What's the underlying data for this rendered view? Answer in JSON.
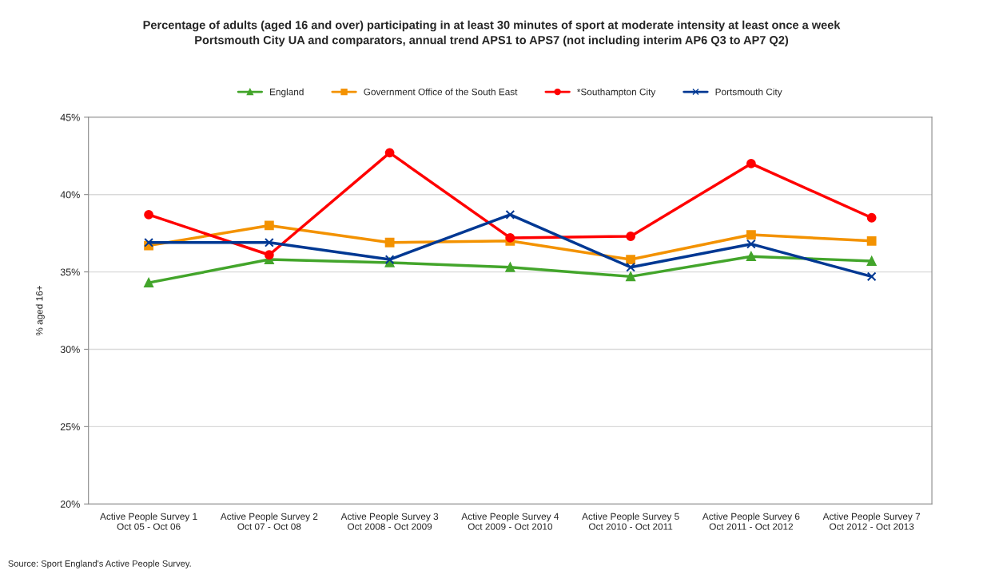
{
  "chart_data": {
    "type": "line",
    "title": "Percentage of adults (aged 16 and over) participating in at least 30 minutes of sport at moderate intensity at least once a week\nPortsmouth City UA and comparators, annual trend APS1 to APS7 (not including interim AP6 Q3 to AP7 Q2)",
    "ylabel": "% aged 16+",
    "categories": [
      "Active People Survey 1\nOct 05 - Oct 06",
      "Active People Survey 2\nOct 07 - Oct 08",
      "Active People Survey 3\nOct 2008 - Oct 2009",
      "Active People Survey 4\nOct 2009 - Oct 2010",
      "Active People Survey 5\nOct 2010 - Oct 2011",
      "Active People Survey 6\nOct 2011 - Oct 2012",
      "Active People Survey 7\nOct 2012 - Oct 2013"
    ],
    "series": [
      {
        "name": "England",
        "color": "#43a52b",
        "marker": "triangle",
        "values": [
          34.3,
          35.8,
          35.6,
          35.3,
          34.7,
          36.0,
          35.7
        ]
      },
      {
        "name": "Government Office of the South East",
        "color": "#f39200",
        "marker": "square",
        "values": [
          36.7,
          38.0,
          36.9,
          37.0,
          35.8,
          37.4,
          37.0
        ]
      },
      {
        "name": "*Southampton City",
        "color": "#ff0000",
        "marker": "circle",
        "values": [
          38.7,
          36.1,
          42.7,
          37.2,
          37.3,
          42.0,
          38.5
        ]
      },
      {
        "name": "Portsmouth City",
        "color": "#003893",
        "marker": "cross",
        "values": [
          36.9,
          36.9,
          35.8,
          38.7,
          35.3,
          36.8,
          34.7
        ]
      }
    ],
    "ylim": [
      20,
      45
    ],
    "yticks": [
      {
        "value": 20,
        "label": "20%"
      },
      {
        "value": 25,
        "label": "25%"
      },
      {
        "value": 30,
        "label": "30%"
      },
      {
        "value": 35,
        "label": "35%"
      },
      {
        "value": 40,
        "label": "40%"
      },
      {
        "value": 45,
        "label": "45%"
      }
    ],
    "grid": "y",
    "legend": "top",
    "annotations": [
      "Source: Sport England's Active People Survey."
    ]
  }
}
